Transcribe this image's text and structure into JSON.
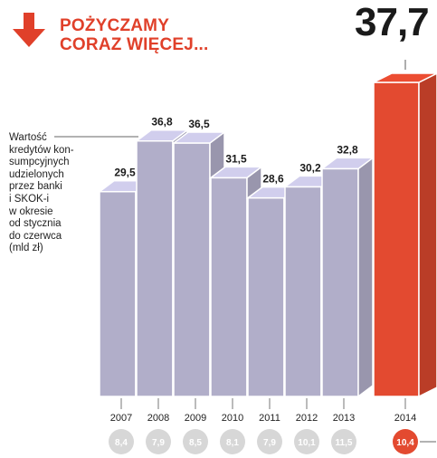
{
  "header": {
    "title_line1": "POŻYCZAMY",
    "title_line2": "CORAZ WIĘCEJ...",
    "arrow_icon": "down-arrow-icon",
    "accent_color": "#e0402a"
  },
  "description": "Wartość\nkredytów kon-\nsumpcyjnych\nudzielonych\nprzez banki\ni SKOK-i\nw okresie\nod stycznia\ndo czerwca\n(mld zł)",
  "chart_data": {
    "type": "bar",
    "categories": [
      "2007",
      "2008",
      "2009",
      "2010",
      "2011",
      "2012",
      "2013",
      "2014"
    ],
    "values": [
      29.5,
      36.8,
      36.5,
      31.5,
      28.6,
      30.2,
      32.8,
      37.7
    ],
    "value_labels": [
      "29,5",
      "36,8",
      "36,5",
      "31,5",
      "28,6",
      "30,2",
      "32,8",
      "37,7"
    ],
    "secondary_labels": [
      "8,4",
      "7,9",
      "8,5",
      "8,1",
      "7,9",
      "10,1",
      "11,5",
      "10,4"
    ],
    "highlight_index": 7,
    "bar_color": "#c9c6e4",
    "highlight_color": "#e34a30",
    "secondary_circle_color": "#d7d7d7",
    "ylim": [
      0,
      40
    ]
  }
}
